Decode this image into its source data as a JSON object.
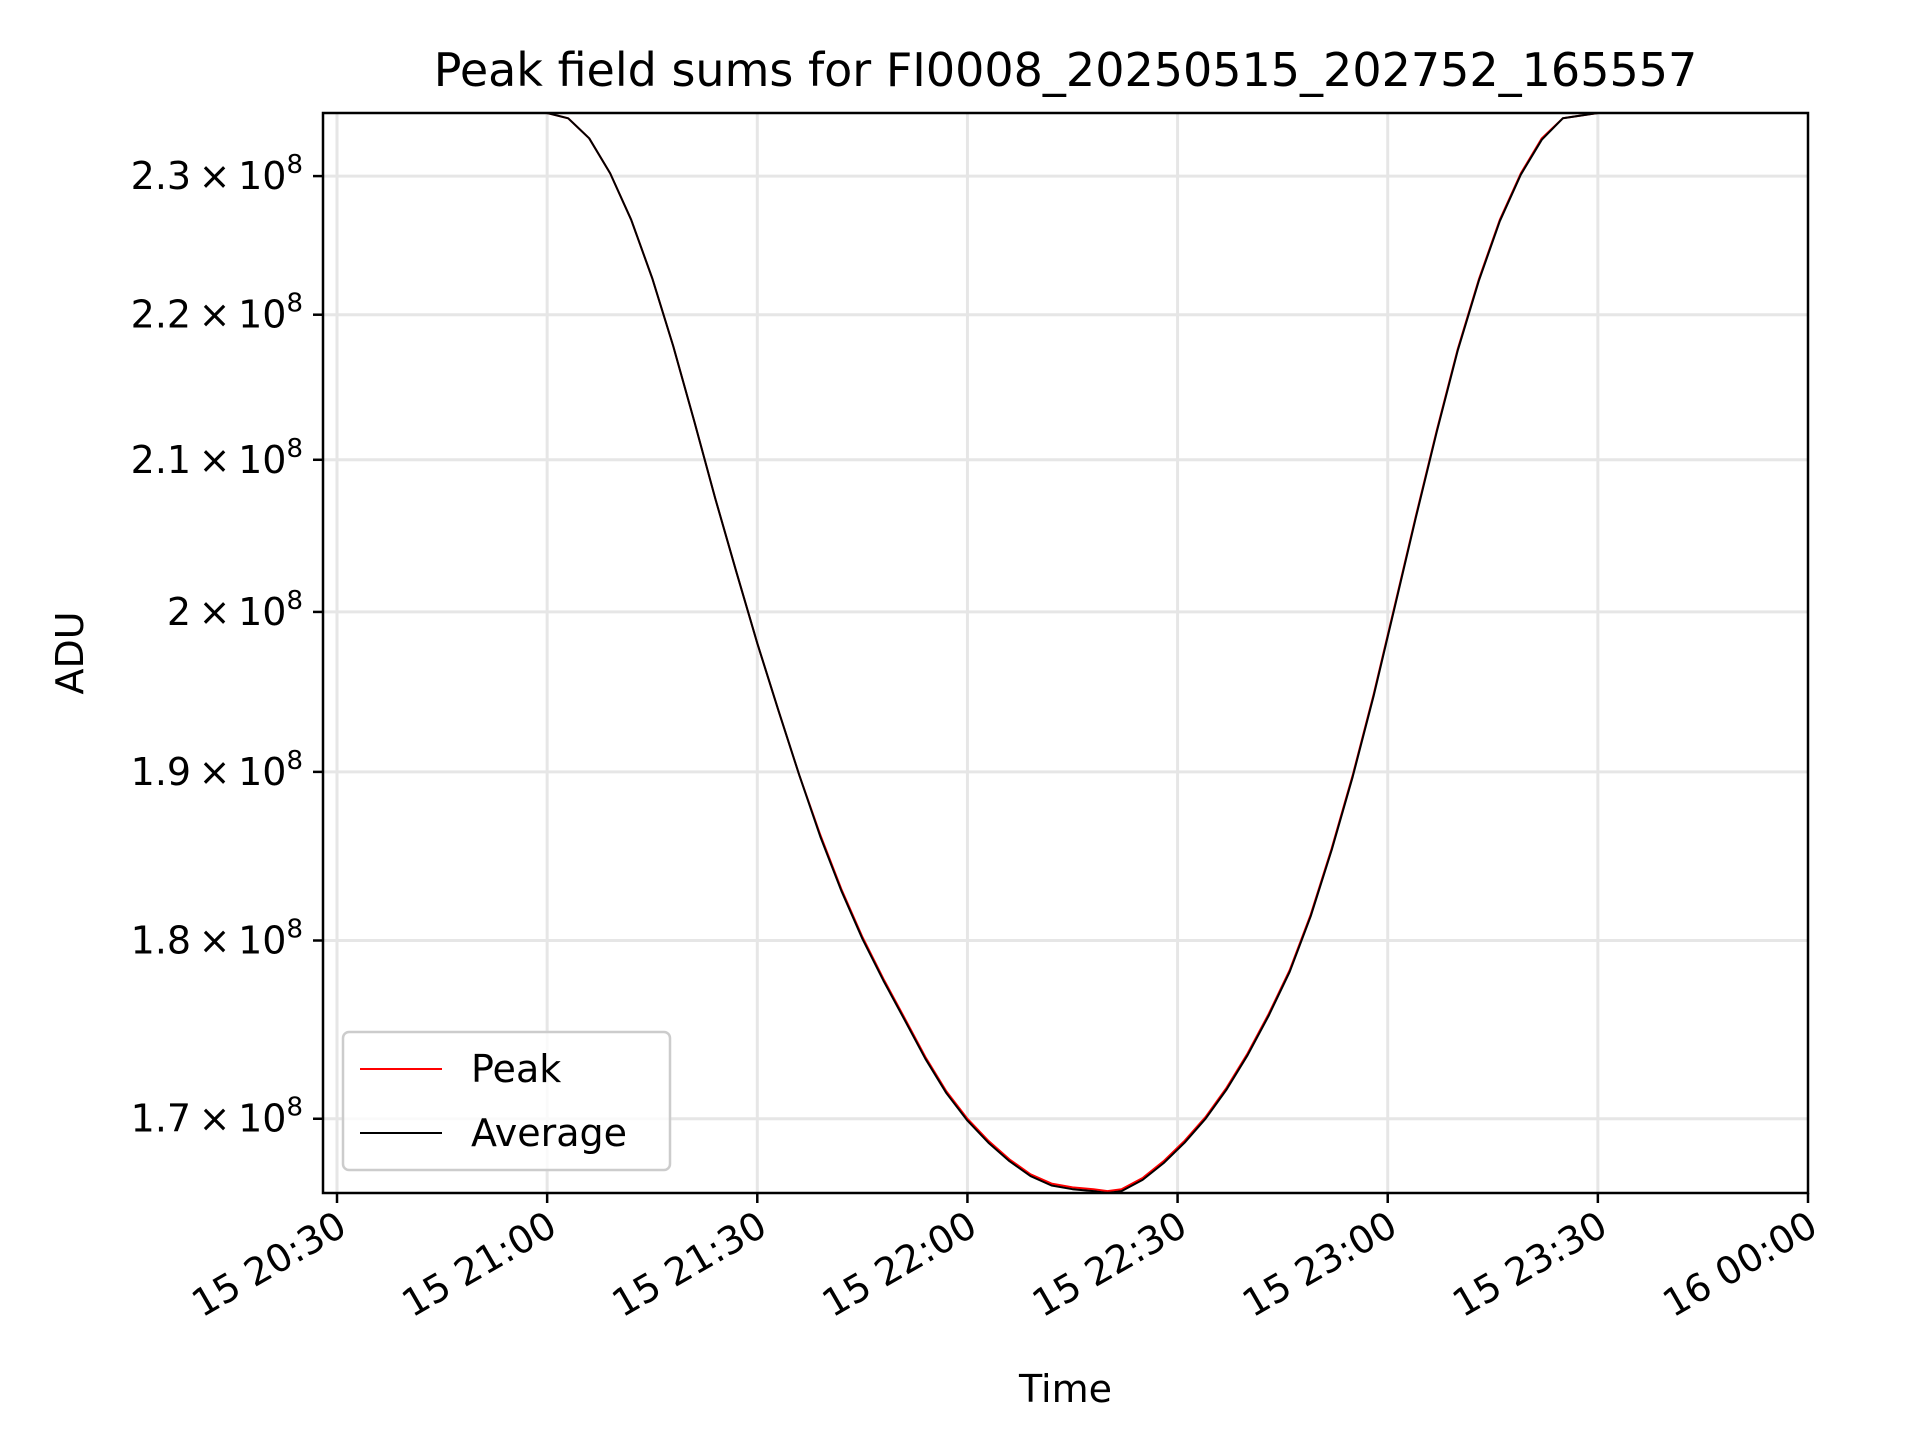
{
  "chart_data": {
    "type": "line",
    "title": "Peak field sums for FI0008_20250515_202752_165557",
    "xlabel": "Time",
    "ylabel": "ADU",
    "x_ticks": [
      "15 20:30",
      "15 21:00",
      "15 21:30",
      "15 22:00",
      "15 22:30",
      "15 23:00",
      "15 23:30",
      "16 00:00"
    ],
    "y_ticks": [
      {
        "value": 170000000,
        "mantissa": "1.7",
        "exp": "8"
      },
      {
        "value": 180000000,
        "mantissa": "1.8",
        "exp": "8"
      },
      {
        "value": 190000000,
        "mantissa": "1.9",
        "exp": "8"
      },
      {
        "value": 200000000,
        "mantissa": "2",
        "exp": "8"
      },
      {
        "value": 210000000,
        "mantissa": "2.1",
        "exp": "8"
      },
      {
        "value": 220000000,
        "mantissa": "2.2",
        "exp": "8"
      },
      {
        "value": 230000000,
        "mantissa": "2.3",
        "exp": "8"
      }
    ],
    "y_scale": "log",
    "xlim": [
      "2025-05-15 20:28",
      "2025-05-16 00:00"
    ],
    "ylim": [
      166000000,
      234700000
    ],
    "grid": true,
    "legend_position": "lower-left",
    "series": [
      {
        "name": "Peak",
        "color": "#ff0000",
        "x": [
          "2025-05-15 20:50",
          "2025-05-15 21:00",
          "2025-05-15 21:03",
          "2025-05-15 21:06",
          "2025-05-15 21:09",
          "2025-05-15 21:12",
          "2025-05-15 21:15",
          "2025-05-15 21:18",
          "2025-05-15 21:21",
          "2025-05-15 21:24",
          "2025-05-15 21:27",
          "2025-05-15 21:30",
          "2025-05-15 21:33",
          "2025-05-15 21:36",
          "2025-05-15 21:39",
          "2025-05-15 21:42",
          "2025-05-15 21:45",
          "2025-05-15 21:48",
          "2025-05-15 21:51",
          "2025-05-15 21:54",
          "2025-05-15 21:57",
          "2025-05-15 22:00",
          "2025-05-15 22:03",
          "2025-05-15 22:06",
          "2025-05-15 22:09",
          "2025-05-15 22:12",
          "2025-05-15 22:15",
          "2025-05-15 22:18",
          "2025-05-15 22:20",
          "2025-05-15 22:22",
          "2025-05-15 22:25",
          "2025-05-15 22:28",
          "2025-05-15 22:31",
          "2025-05-15 22:34",
          "2025-05-15 22:37",
          "2025-05-15 22:40",
          "2025-05-15 22:43",
          "2025-05-15 22:46",
          "2025-05-15 22:49",
          "2025-05-15 22:52",
          "2025-05-15 22:55",
          "2025-05-15 22:58",
          "2025-05-15 23:01",
          "2025-05-15 23:04",
          "2025-05-15 23:07",
          "2025-05-15 23:10",
          "2025-05-15 23:13",
          "2025-05-15 23:16",
          "2025-05-15 23:19",
          "2025-05-15 23:22",
          "2025-05-15 23:25",
          "2025-05-15 23:30"
        ],
        "y": [
          234700000,
          234700000,
          234300000,
          232800000,
          230200000,
          226800000,
          222600000,
          217800000,
          212600000,
          207400000,
          202600000,
          198000000,
          193800000,
          189800000,
          186200000,
          183000000,
          180200000,
          177800000,
          175600000,
          173400000,
          171500000,
          170000000,
          168800000,
          167800000,
          167000000,
          166500000,
          166300000,
          166200000,
          166100000,
          166200000,
          166800000,
          167700000,
          168800000,
          170100000,
          171700000,
          173600000,
          175800000,
          178300000,
          181500000,
          185400000,
          189800000,
          194800000,
          200400000,
          206200000,
          212000000,
          217600000,
          222500000,
          226800000,
          230200000,
          232800000,
          234300000,
          234700000
        ]
      },
      {
        "name": "Average",
        "color": "#000000",
        "x": [
          "2025-05-15 20:50",
          "2025-05-15 21:00",
          "2025-05-15 21:03",
          "2025-05-15 21:06",
          "2025-05-15 21:09",
          "2025-05-15 21:12",
          "2025-05-15 21:15",
          "2025-05-15 21:18",
          "2025-05-15 21:21",
          "2025-05-15 21:24",
          "2025-05-15 21:27",
          "2025-05-15 21:30",
          "2025-05-15 21:33",
          "2025-05-15 21:36",
          "2025-05-15 21:39",
          "2025-05-15 21:42",
          "2025-05-15 21:45",
          "2025-05-15 21:48",
          "2025-05-15 21:51",
          "2025-05-15 21:54",
          "2025-05-15 21:57",
          "2025-05-15 22:00",
          "2025-05-15 22:03",
          "2025-05-15 22:06",
          "2025-05-15 22:09",
          "2025-05-15 22:12",
          "2025-05-15 22:15",
          "2025-05-15 22:18",
          "2025-05-15 22:20",
          "2025-05-15 22:22",
          "2025-05-15 22:25",
          "2025-05-15 22:28",
          "2025-05-15 22:31",
          "2025-05-15 22:34",
          "2025-05-15 22:37",
          "2025-05-15 22:40",
          "2025-05-15 22:43",
          "2025-05-15 22:46",
          "2025-05-15 22:49",
          "2025-05-15 22:52",
          "2025-05-15 22:55",
          "2025-05-15 22:58",
          "2025-05-15 23:01",
          "2025-05-15 23:04",
          "2025-05-15 23:07",
          "2025-05-15 23:10",
          "2025-05-15 23:13",
          "2025-05-15 23:16",
          "2025-05-15 23:19",
          "2025-05-15 23:22",
          "2025-05-15 23:25",
          "2025-05-15 23:30"
        ],
        "y": [
          234700000,
          234700000,
          234300000,
          232800000,
          230200000,
          226800000,
          222600000,
          217800000,
          212600000,
          207400000,
          202600000,
          198000000,
          193800000,
          189800000,
          186100000,
          182900000,
          180100000,
          177700000,
          175500000,
          173300000,
          171400000,
          169900000,
          168700000,
          167700000,
          166900000,
          166400000,
          166200000,
          166100000,
          166000000,
          166100000,
          166700000,
          167600000,
          168700000,
          170000000,
          171600000,
          173500000,
          175700000,
          178200000,
          181400000,
          185300000,
          189700000,
          194700000,
          200300000,
          206100000,
          211900000,
          217500000,
          222400000,
          226700000,
          230100000,
          232700000,
          234300000,
          234700000
        ]
      }
    ]
  }
}
